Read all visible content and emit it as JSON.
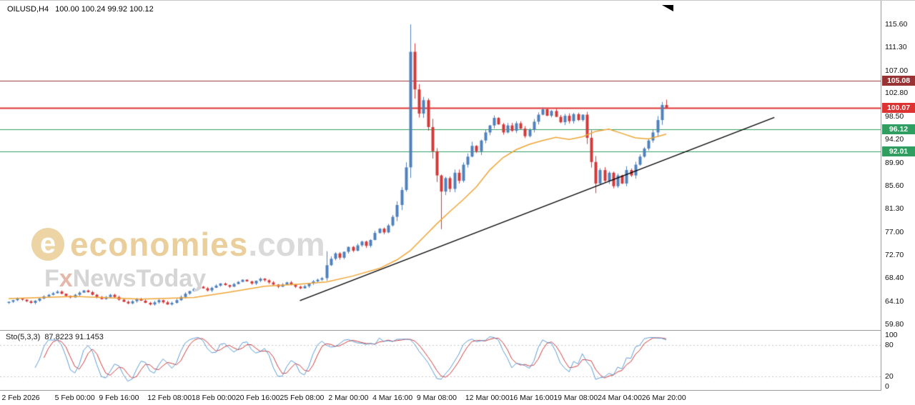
{
  "header": {
    "symbol": "OILUSD,H4",
    "ohlc": "100.00 100.24 99.92 100.12"
  },
  "watermark": {
    "brand": "economies",
    "suffix": ".com",
    "f": "F",
    "x": "x",
    "rest": "NewsToday"
  },
  "chart_data": {
    "type": "candlestick",
    "symbol": "OILUSD",
    "timeframe": "H4",
    "price_axis": {
      "max": 120.0,
      "min": 58.75,
      "ticks": [
        "115.60",
        "111.30",
        "107.00",
        "102.80",
        "98.50",
        "94.20",
        "89.90",
        "85.60",
        "81.30",
        "77.00",
        "72.70",
        "68.40",
        "64.10",
        "59.80"
      ]
    },
    "time_labels": [
      {
        "text": "2 Feb 2026",
        "i": 3
      },
      {
        "text": "5 Feb 00:00",
        "i": 15
      },
      {
        "text": "9 Feb 16:00",
        "i": 25
      },
      {
        "text": "12 Feb 08:00",
        "i": 36
      },
      {
        "text": "18 Feb 00:00",
        "i": 46
      },
      {
        "text": "20 Feb 16:00",
        "i": 56
      },
      {
        "text": "25 Feb 08:00",
        "i": 66
      },
      {
        "text": "2 Mar 00:00",
        "i": 77
      },
      {
        "text": "4 Mar 16:00",
        "i": 87
      },
      {
        "text": "9 Mar 08:00",
        "i": 97
      },
      {
        "text": "12 Mar 00:00",
        "i": 108
      },
      {
        "text": "16 Mar 16:00",
        "i": 118
      },
      {
        "text": "19 Mar 08:00",
        "i": 128
      },
      {
        "text": "24 Mar 04:00",
        "i": 138
      },
      {
        "text": "26 Mar 20:00",
        "i": 148
      }
    ],
    "levels": [
      {
        "label": "105.08",
        "value": 105.08,
        "color": "#993333",
        "width": 1
      },
      {
        "label": "100.07",
        "value": 100.07,
        "color": "#dd3333",
        "width": 2
      },
      {
        "label": "96.12",
        "value": 96.12,
        "color": "#2f9e60",
        "width": 1
      },
      {
        "label": "92.01",
        "value": 92.01,
        "color": "#2f9e60",
        "width": 1
      }
    ],
    "candles": {
      "up_color": "#4f81bd",
      "down_color": "#d23a3a",
      "first_open": 63.8,
      "closes": [
        64.0,
        64.3,
        64.6,
        64.4,
        64.1,
        63.8,
        64.2,
        64.6,
        65.0,
        65.3,
        65.6,
        65.9,
        65.5,
        65.1,
        64.8,
        65.3,
        65.7,
        66.1,
        65.8,
        65.3,
        64.9,
        64.5,
        64.9,
        65.3,
        64.9,
        64.4,
        64.0,
        63.7,
        64.1,
        64.5,
        64.2,
        63.8,
        63.5,
        63.9,
        64.3,
        63.9,
        63.5,
        63.8,
        64.3,
        64.9,
        65.5,
        66.0,
        66.4,
        66.8,
        66.5,
        66.1,
        66.6,
        67.0,
        67.4,
        67.1,
        66.8,
        67.3,
        67.7,
        68.1,
        67.8,
        67.4,
        67.9,
        68.3,
        68.0,
        67.6,
        67.2,
        66.8,
        67.2,
        67.6,
        67.2,
        66.8,
        66.5,
        66.9,
        67.4,
        67.8,
        68.1,
        68.4,
        70.8,
        72.0,
        73.0,
        72.2,
        73.3,
        74.2,
        73.5,
        74.5,
        75.2,
        74.4,
        75.5,
        76.8,
        77.6,
        76.9,
        78.2,
        79.8,
        82.0,
        84.8,
        89.0,
        110.5,
        103.5,
        99.0,
        101.5,
        96.5,
        92.0,
        87.5,
        84.5,
        87.0,
        85.0,
        88.0,
        86.5,
        89.5,
        91.0,
        93.0,
        92.0,
        94.0,
        95.5,
        96.8,
        98.2,
        97.0,
        95.5,
        96.8,
        95.8,
        97.2,
        96.2,
        94.8,
        96.0,
        97.5,
        98.8,
        99.8,
        98.6,
        99.5,
        98.4,
        97.4,
        98.6,
        97.6,
        98.9,
        97.8,
        98.8,
        94.5,
        90.0,
        86.0,
        88.5,
        86.5,
        88.0,
        85.5,
        87.5,
        86.0,
        88.5,
        87.5,
        89.5,
        91.0,
        92.5,
        94.0,
        95.5,
        97.8,
        100.6,
        100.12
      ],
      "overrides": {
        "72": {
          "high": 73.4
        },
        "91": {
          "high": 115.6
        },
        "98": {
          "low": 77.5
        },
        "133": {
          "low": 84.2
        },
        "149": {
          "high": 101.6
        }
      }
    },
    "ma": {
      "color": "#f0a434",
      "points": [
        [
          0,
          64.6
        ],
        [
          15,
          65.0
        ],
        [
          30,
          64.5
        ],
        [
          42,
          64.8
        ],
        [
          50,
          65.8
        ],
        [
          58,
          66.9
        ],
        [
          66,
          67.3
        ],
        [
          72,
          67.7
        ],
        [
          78,
          68.8
        ],
        [
          84,
          70.2
        ],
        [
          88,
          71.8
        ],
        [
          91,
          73.5
        ],
        [
          94,
          76.0
        ],
        [
          97,
          78.5
        ],
        [
          100,
          80.8
        ],
        [
          103,
          83.0
        ],
        [
          106,
          85.4
        ],
        [
          109,
          88.5
        ],
        [
          112,
          90.8
        ],
        [
          115,
          92.3
        ],
        [
          118,
          93.3
        ],
        [
          121,
          94.0
        ],
        [
          124,
          94.6
        ],
        [
          127,
          94.2
        ],
        [
          130,
          94.7
        ],
        [
          133,
          95.7
        ],
        [
          136,
          96.1
        ],
        [
          139,
          95.3
        ],
        [
          142,
          94.5
        ],
        [
          145,
          94.3
        ],
        [
          149,
          95.2
        ]
      ]
    },
    "trendline": {
      "color": "#000000",
      "i1": 66,
      "price1": 64.2,
      "i2": 173.5,
      "price2": 98.3
    },
    "stochastic": {
      "name": "Sto(5,3,3)",
      "values": "87.8223 91.1453",
      "k_period": 5,
      "slowing": 3,
      "d_period": 3,
      "range": [
        0,
        100
      ],
      "ticks": [
        "100",
        "80",
        "20",
        "0"
      ],
      "dotted_levels": [
        80,
        20
      ],
      "k_color": "#5b9bd5",
      "d_color": "#d23a3a"
    }
  }
}
